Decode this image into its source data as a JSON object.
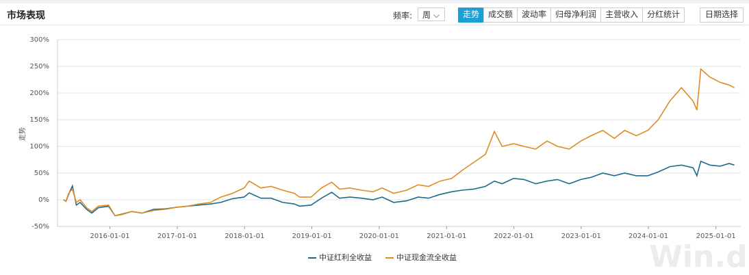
{
  "header": {
    "title": "市场表现",
    "freq_label": "频率:",
    "freq_value": "周",
    "tabs": [
      "走势",
      "成交额",
      "波动率",
      "归母净利润",
      "主营收入",
      "分红统计"
    ],
    "active_tab": 0,
    "date_button": "日期选择"
  },
  "watermark": "Win.d",
  "chart_data": {
    "type": "line",
    "ylabel": "走势",
    "x": [
      "2015-04-24",
      "2015-05-08",
      "2015-05-22",
      "2015-06-12",
      "2015-07-03",
      "2015-07-24",
      "2015-08-28",
      "2015-09-25",
      "2015-10-30",
      "2015-12-25",
      "2016-01-29",
      "2016-03-04",
      "2016-04-29",
      "2016-06-24",
      "2016-08-26",
      "2016-10-28",
      "2016-12-30",
      "2017-02-24",
      "2017-04-28",
      "2017-06-30",
      "2017-08-25",
      "2017-10-27",
      "2017-12-29",
      "2018-01-26",
      "2018-03-30",
      "2018-05-25",
      "2018-07-27",
      "2018-09-28",
      "2018-10-26",
      "2018-12-28",
      "2019-02-22",
      "2019-04-19",
      "2019-05-31",
      "2019-07-26",
      "2019-09-27",
      "2019-11-29",
      "2020-01-17",
      "2020-03-20",
      "2020-05-29",
      "2020-07-31",
      "2020-09-25",
      "2020-11-27",
      "2021-01-29",
      "2021-03-26",
      "2021-05-28",
      "2021-07-30",
      "2021-09-17",
      "2021-10-29",
      "2021-12-31",
      "2022-02-25",
      "2022-04-29",
      "2022-06-30",
      "2022-08-26",
      "2022-10-28",
      "2022-12-30",
      "2023-02-24",
      "2023-04-28",
      "2023-06-30",
      "2023-08-25",
      "2023-10-27",
      "2023-12-29",
      "2024-02-23",
      "2024-04-26",
      "2024-06-28",
      "2024-08-30",
      "2024-09-20",
      "2024-10-11",
      "2024-11-29",
      "2025-01-24",
      "2025-03-14",
      "2025-04-11"
    ],
    "series": [
      {
        "name": "中证红利全收益",
        "color": "#1b6a8c",
        "values": [
          0,
          -3,
          10,
          26,
          -10,
          -5,
          -18,
          -25,
          -15,
          -12,
          -30,
          -27,
          -22,
          -25,
          -18,
          -17,
          -14,
          -12,
          -10,
          -8,
          -5,
          2,
          5,
          13,
          3,
          3,
          -5,
          -8,
          -12,
          -10,
          3,
          14,
          3,
          5,
          3,
          0,
          5,
          -5,
          -2,
          5,
          3,
          10,
          15,
          18,
          20,
          25,
          35,
          30,
          40,
          38,
          30,
          35,
          38,
          30,
          38,
          42,
          50,
          45,
          50,
          45,
          45,
          52,
          62,
          65,
          60,
          45,
          72,
          65,
          63,
          68,
          65
        ]
      },
      {
        "name": "中证现金流全收益",
        "color": "#e08a22",
        "values": [
          0,
          -3,
          12,
          20,
          -5,
          0,
          -15,
          -22,
          -12,
          -10,
          -30,
          -28,
          -22,
          -25,
          -20,
          -18,
          -14,
          -12,
          -8,
          -5,
          5,
          12,
          22,
          35,
          22,
          25,
          18,
          12,
          5,
          5,
          22,
          33,
          20,
          22,
          18,
          15,
          22,
          12,
          18,
          28,
          25,
          35,
          40,
          55,
          70,
          85,
          128,
          100,
          105,
          100,
          95,
          110,
          100,
          95,
          110,
          120,
          130,
          115,
          130,
          120,
          130,
          150,
          185,
          210,
          185,
          168,
          245,
          230,
          220,
          215,
          210
        ]
      }
    ],
    "xlim": [
      "2015-03-23",
      "2025-05-16"
    ],
    "xticks": [
      "2016-01-01",
      "2017-01-01",
      "2018-01-01",
      "2019-01-01",
      "2020-01-01",
      "2021-01-01",
      "2022-01-01",
      "2023-01-01",
      "2024-01-01",
      "2025-01-01"
    ],
    "ylim": [
      -50,
      300
    ],
    "yticks": [
      {
        "value": -50,
        "label": "-50%"
      },
      {
        "value": 0,
        "label": "0%"
      },
      {
        "value": 50,
        "label": "50%"
      },
      {
        "value": 100,
        "label": "100%"
      },
      {
        "value": 150,
        "label": "150%"
      },
      {
        "value": 200,
        "label": "200%"
      },
      {
        "value": 250,
        "label": "250%"
      },
      {
        "value": 300,
        "label": "300%"
      }
    ],
    "grid": true,
    "legend": "bottom"
  }
}
